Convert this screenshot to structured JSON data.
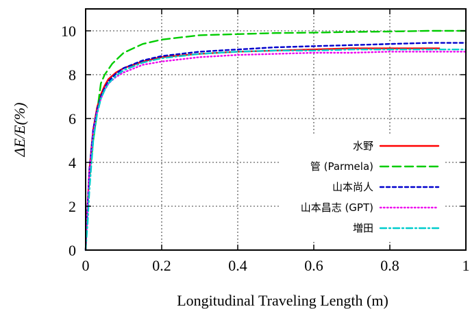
{
  "chart_data": {
    "type": "line",
    "xlabel": "Longitudinal Traveling Length (m)",
    "ylabel": "ΔE/E(%)",
    "xlim": [
      0,
      1
    ],
    "ylim": [
      0,
      11
    ],
    "x_ticks": [
      "0",
      "0.2",
      "0.4",
      "0.6",
      "0.8",
      "1"
    ],
    "y_ticks": [
      "0",
      "2",
      "4",
      "6",
      "8",
      "10"
    ],
    "grid": true,
    "legend_position": "bottom-right",
    "series": [
      {
        "name": "水野",
        "color": "#ff0000",
        "dash": "solid",
        "x": [
          0,
          0.005,
          0.01,
          0.02,
          0.03,
          0.04,
          0.05,
          0.06,
          0.08,
          0.1,
          0.15,
          0.2,
          0.3,
          0.4,
          0.5,
          0.6,
          0.7,
          0.8,
          0.9,
          0.93
        ],
        "y": [
          0,
          2.0,
          3.7,
          5.5,
          6.5,
          7.1,
          7.5,
          7.8,
          8.1,
          8.3,
          8.6,
          8.8,
          8.95,
          9.05,
          9.1,
          9.15,
          9.2,
          9.2,
          9.2,
          9.2
        ]
      },
      {
        "name": "管 (Parmela)",
        "color": "#00cc00",
        "dash": "long",
        "x": [
          0,
          0.005,
          0.01,
          0.02,
          0.03,
          0.04,
          0.05,
          0.07,
          0.1,
          0.15,
          0.2,
          0.3,
          0.4,
          0.5,
          0.6,
          0.7,
          0.8,
          0.9,
          1.0
        ],
        "y": [
          0,
          2.0,
          3.3,
          5.0,
          6.3,
          7.6,
          8.0,
          8.5,
          9.0,
          9.4,
          9.6,
          9.8,
          9.85,
          9.9,
          9.92,
          9.95,
          9.97,
          10.0,
          10.0
        ]
      },
      {
        "name": "山本尚人",
        "color": "#0000cc",
        "dash": "short",
        "x": [
          0,
          0.005,
          0.01,
          0.02,
          0.03,
          0.04,
          0.05,
          0.06,
          0.08,
          0.1,
          0.15,
          0.2,
          0.3,
          0.4,
          0.5,
          0.6,
          0.7,
          0.8,
          0.9,
          1.0
        ],
        "y": [
          0,
          2.0,
          3.7,
          5.5,
          6.4,
          7.0,
          7.4,
          7.7,
          8.05,
          8.3,
          8.65,
          8.85,
          9.05,
          9.15,
          9.25,
          9.3,
          9.35,
          9.4,
          9.45,
          9.45
        ]
      },
      {
        "name": "山本昌志 (GPT)",
        "color": "#ee00ee",
        "dash": "dotted",
        "x": [
          0,
          0.005,
          0.01,
          0.02,
          0.03,
          0.04,
          0.05,
          0.06,
          0.08,
          0.1,
          0.15,
          0.2,
          0.3,
          0.4,
          0.5,
          0.6,
          0.7,
          0.8,
          0.9,
          1.0
        ],
        "y": [
          0,
          1.9,
          3.5,
          5.3,
          6.3,
          6.9,
          7.3,
          7.6,
          7.9,
          8.1,
          8.45,
          8.6,
          8.8,
          8.9,
          8.95,
          9.0,
          9.0,
          9.05,
          9.05,
          9.05
        ]
      },
      {
        "name": "増田",
        "color": "#00cccc",
        "dash": "dashdot",
        "x": [
          0,
          0.005,
          0.01,
          0.02,
          0.03,
          0.04,
          0.05,
          0.06,
          0.08,
          0.1,
          0.15,
          0.2,
          0.3,
          0.4,
          0.5,
          0.6,
          0.7,
          0.8,
          0.9,
          1.0
        ],
        "y": [
          0,
          1.2,
          2.8,
          5.0,
          6.2,
          6.9,
          7.3,
          7.6,
          7.95,
          8.2,
          8.55,
          8.75,
          8.95,
          9.05,
          9.1,
          9.1,
          9.15,
          9.15,
          9.15,
          9.15
        ]
      }
    ]
  }
}
